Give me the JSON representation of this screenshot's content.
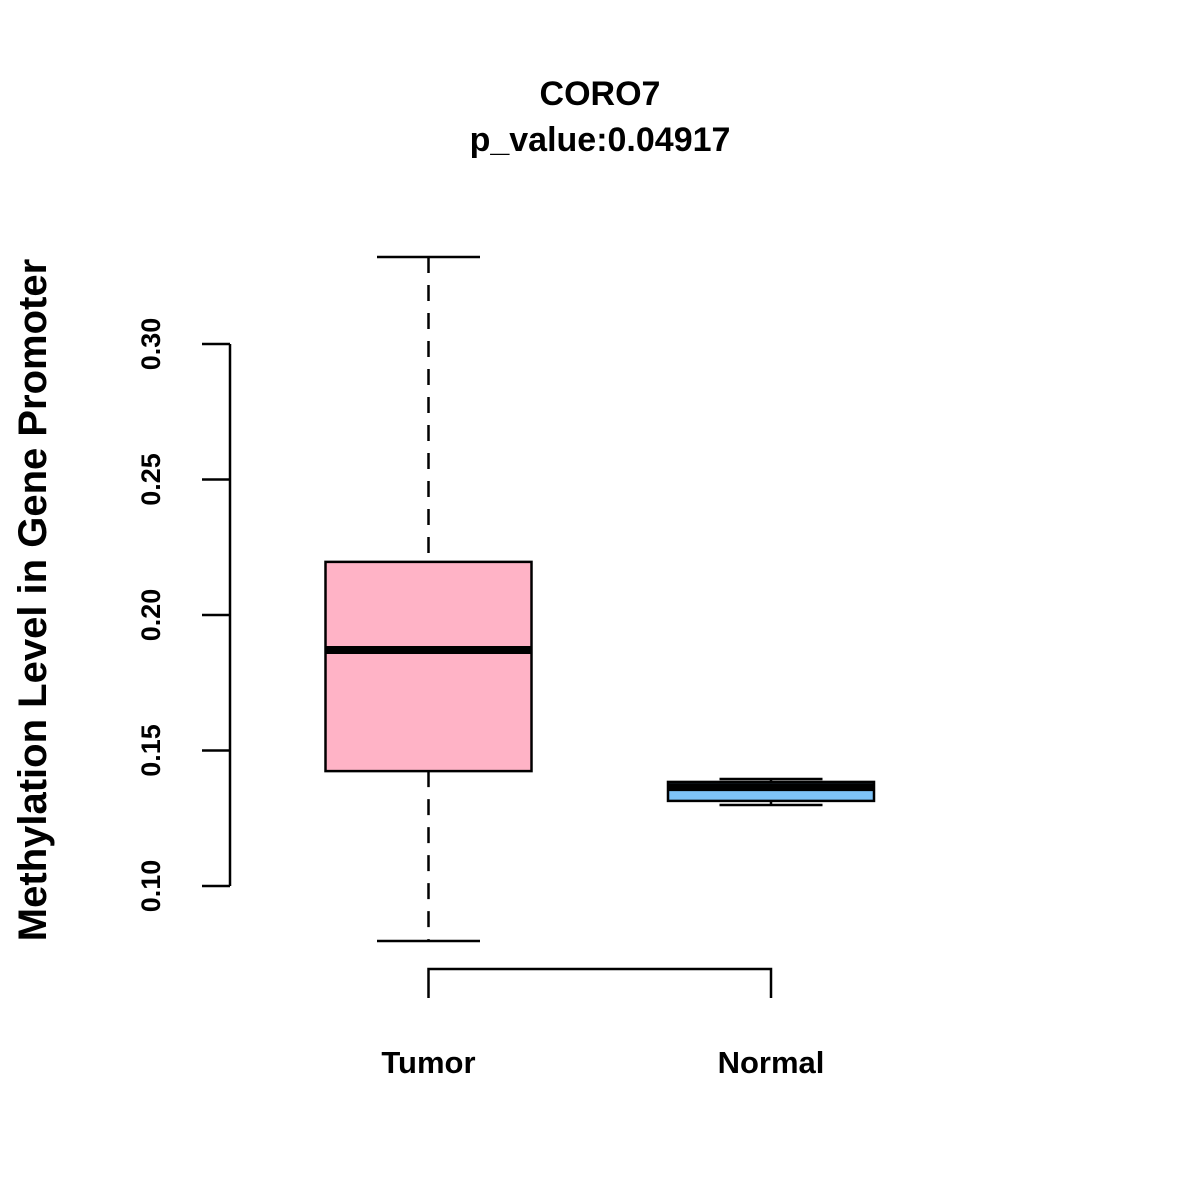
{
  "chart_data": {
    "type": "boxplot",
    "title": "CORO7",
    "subtitle": "p_value:0.04917",
    "xlabel": "",
    "ylabel": "Methylation Level in Gene Promoter",
    "ylim": [
      0.07,
      0.34
    ],
    "yticks": [
      0.1,
      0.15,
      0.2,
      0.25,
      0.3
    ],
    "ytick_labels": [
      "0.10",
      "0.15",
      "0.20",
      "0.25",
      "0.30"
    ],
    "grid": false,
    "categories": [
      "Tumor",
      "Normal"
    ],
    "boxes": [
      {
        "name": "Tumor",
        "color": "#FFB3C6",
        "whisker_low": 0.0797,
        "q1": 0.1424,
        "median": 0.1871,
        "q3": 0.2196,
        "whisker_high": 0.3321
      },
      {
        "name": "Normal",
        "color": "#7EC3F7",
        "whisker_low": 0.1299,
        "q1": 0.1314,
        "median": 0.1365,
        "q3": 0.1384,
        "whisker_high": 0.1395
      }
    ]
  }
}
